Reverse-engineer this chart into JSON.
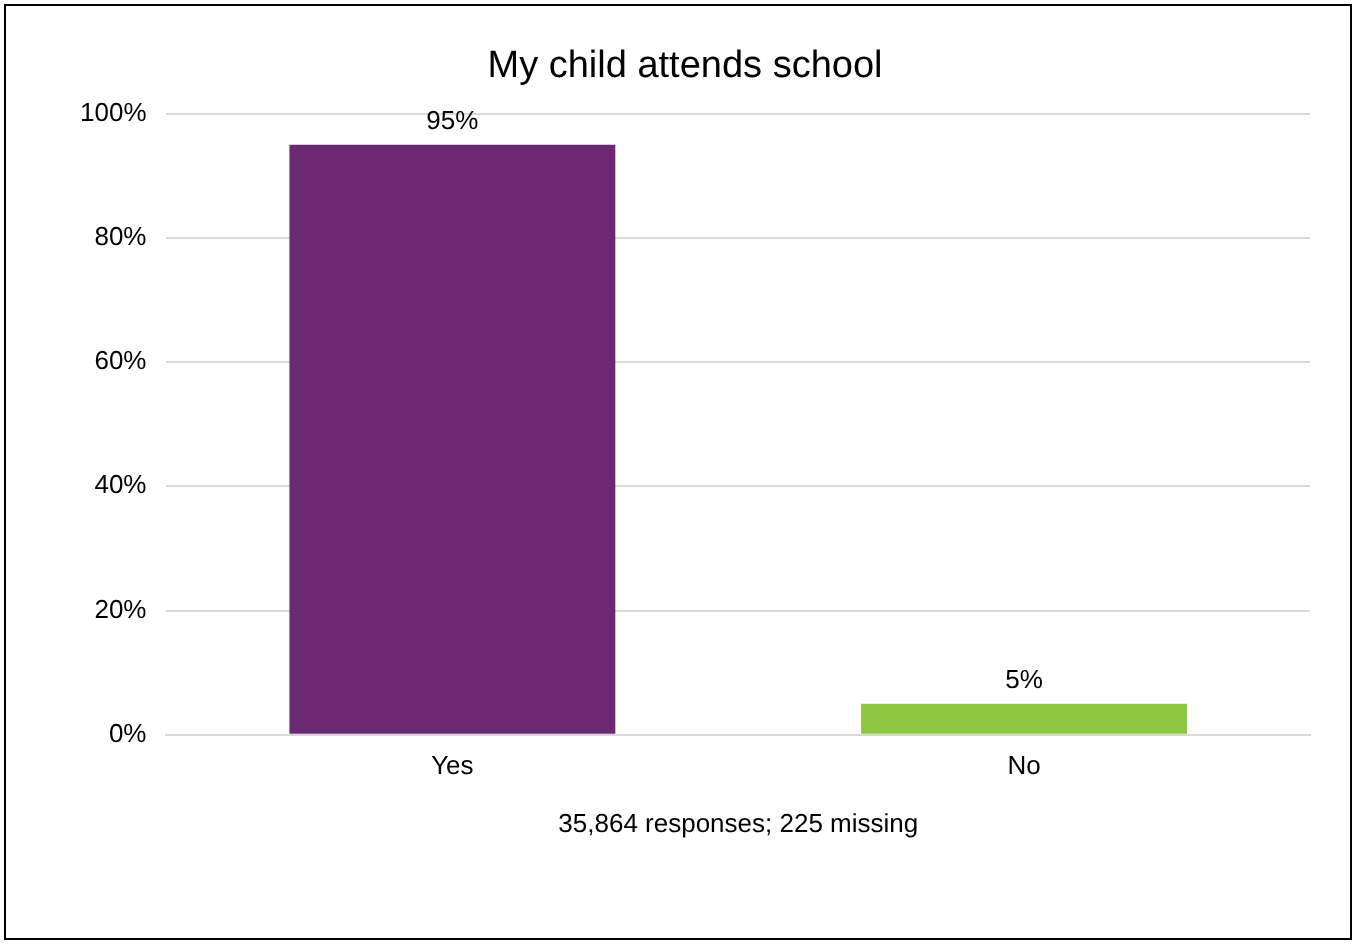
{
  "chart_data": {
    "type": "bar",
    "title": "My child attends school",
    "categories": [
      "Yes",
      "No"
    ],
    "values": [
      95,
      5
    ],
    "colors": [
      "#6b2974",
      "#8dc641"
    ],
    "value_labels": [
      "95%",
      "5%"
    ],
    "ylim": [
      0,
      100
    ],
    "yticks": [
      {
        "value": 0,
        "label": "0%"
      },
      {
        "value": 20,
        "label": "20%"
      },
      {
        "value": 40,
        "label": "40%"
      },
      {
        "value": 60,
        "label": "60%"
      },
      {
        "value": 80,
        "label": "80%"
      },
      {
        "value": 100,
        "label": "100%"
      }
    ],
    "grid": "y",
    "legend": false,
    "annotations": [
      "35,864 responses; 225 missing"
    ]
  }
}
